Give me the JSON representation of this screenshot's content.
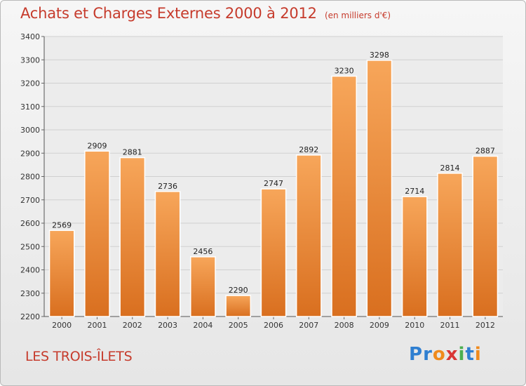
{
  "header": {
    "title": "Achats et Charges Externes 2000 à 2012",
    "subtitle": "(en milliers d'€)"
  },
  "footer": {
    "commune": "LES TROIS-ÎLETS",
    "logo_letters": [
      {
        "ch": "P",
        "color": "#2f7fd1"
      },
      {
        "ch": "r",
        "color": "#2f7fd1"
      },
      {
        "ch": "o",
        "color": "#f08a1c"
      },
      {
        "ch": "x",
        "color": "#d93535"
      },
      {
        "ch": "i",
        "color": "#4caf50"
      },
      {
        "ch": "t",
        "color": "#2f7fd1"
      },
      {
        "ch": "i",
        "color": "#f08a1c"
      }
    ]
  },
  "colors": {
    "bar_light": "#f7a65a",
    "bar_dark": "#d96f1f",
    "grid": "#d0d0d0",
    "title": "#c63b2c"
  },
  "chart_data": {
    "type": "bar",
    "categories": [
      "2000",
      "2001",
      "2002",
      "2003",
      "2004",
      "2005",
      "2006",
      "2007",
      "2008",
      "2009",
      "2010",
      "2011",
      "2012"
    ],
    "values": [
      2569,
      2909,
      2881,
      2736,
      2456,
      2290,
      2747,
      2892,
      3230,
      3298,
      2714,
      2814,
      2887
    ],
    "ylim": [
      2200,
      3400
    ],
    "yticks": [
      2200,
      2300,
      2400,
      2500,
      2600,
      2700,
      2800,
      2900,
      3000,
      3100,
      3200,
      3300,
      3400
    ],
    "grid": true,
    "data_labels": true,
    "xlabel": "",
    "ylabel": ""
  }
}
